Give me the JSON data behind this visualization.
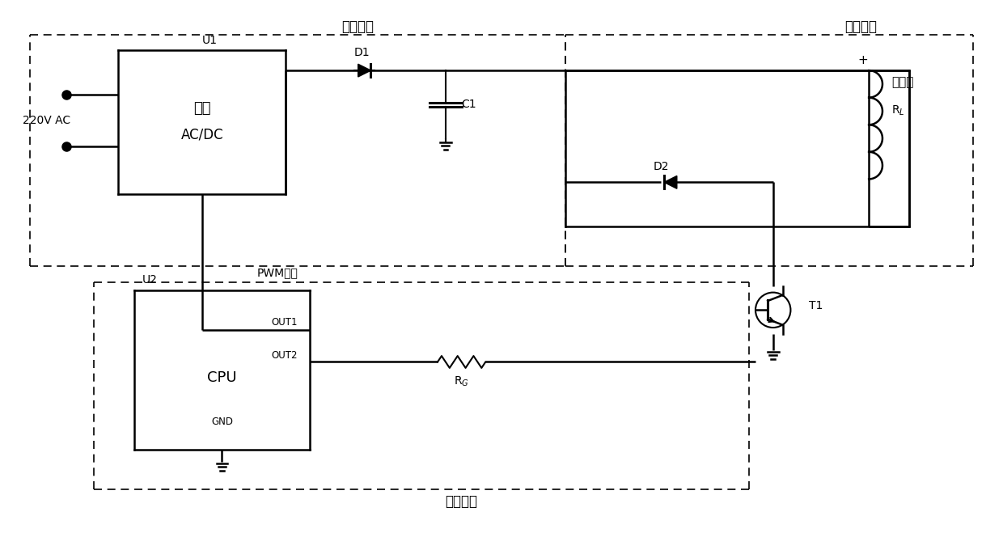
{
  "bg_color": "#ffffff",
  "line_color": "#000000",
  "text_color": "#000000",
  "figsize": [
    12.4,
    6.59
  ],
  "dpi": 100,
  "labels": {
    "driving_circuit": "驱动电路",
    "working_circuit": "工作电路",
    "control_circuit": "控制电路",
    "pwm_output": "PWM输出",
    "u1": "U1",
    "u2": "U2",
    "power_label1": "电源",
    "power_label2": "AC/DC",
    "cpu_label": "CPU",
    "d1": "D1",
    "d2": "D2",
    "c1": "C1",
    "t1": "T1",
    "electromagnet1": "电磁铁",
    "out1": "OUT1",
    "out2": "OUT2",
    "gnd": "GND",
    "v220_ac": "220V AC",
    "plus": "+"
  }
}
